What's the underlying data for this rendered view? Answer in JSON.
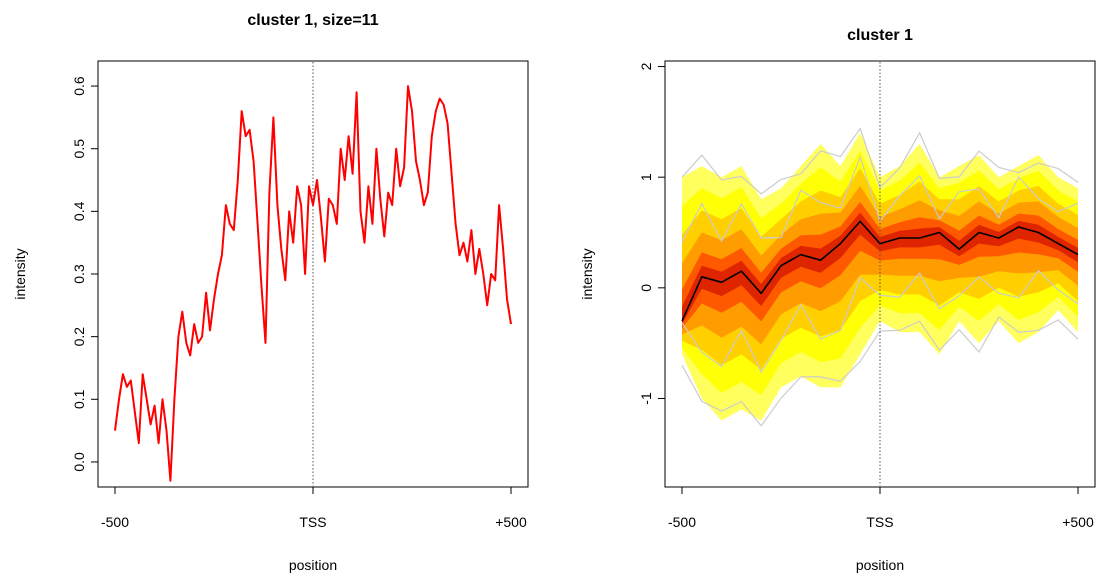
{
  "chart_data": [
    {
      "type": "line",
      "title": "cluster 1, size=11",
      "xlabel": "position",
      "ylabel": "intensity",
      "xlim": [
        -500,
        500
      ],
      "ylim": [
        -0.04,
        0.64
      ],
      "x_ticks": [
        {
          "value": -500,
          "label": "-500"
        },
        {
          "value": 0,
          "label": "TSS"
        },
        {
          "value": 500,
          "label": "+500"
        }
      ],
      "y_ticks": [
        {
          "value": 0.0,
          "label": "0.0"
        },
        {
          "value": 0.1,
          "label": "0.1"
        },
        {
          "value": 0.2,
          "label": "0.2"
        },
        {
          "value": 0.3,
          "label": "0.3"
        },
        {
          "value": 0.4,
          "label": "0.4"
        },
        {
          "value": 0.5,
          "label": "0.5"
        },
        {
          "value": 0.6,
          "label": "0.6"
        }
      ],
      "vline": 0,
      "grid": false,
      "series": [
        {
          "color": "#ff0000",
          "x": [
            -500,
            -490,
            -480,
            -470,
            -460,
            -450,
            -440,
            -430,
            -420,
            -410,
            -400,
            -390,
            -380,
            -370,
            -360,
            -350,
            -340,
            -330,
            -320,
            -310,
            -300,
            -290,
            -280,
            -270,
            -260,
            -250,
            -240,
            -230,
            -220,
            -210,
            -200,
            -190,
            -180,
            -170,
            -160,
            -150,
            -140,
            -130,
            -120,
            -110,
            -100,
            -90,
            -80,
            -70,
            -60,
            -50,
            -40,
            -30,
            -20,
            -10,
            0,
            10,
            20,
            30,
            40,
            50,
            60,
            70,
            80,
            90,
            100,
            110,
            120,
            130,
            140,
            150,
            160,
            170,
            180,
            190,
            200,
            210,
            220,
            230,
            240,
            250,
            260,
            270,
            280,
            290,
            300,
            310,
            320,
            330,
            340,
            350,
            360,
            370,
            380,
            390,
            400,
            410,
            420,
            430,
            440,
            450,
            460,
            470,
            480,
            490,
            500
          ],
          "values": [
            0.05,
            0.1,
            0.14,
            0.12,
            0.13,
            0.08,
            0.03,
            0.14,
            0.1,
            0.06,
            0.09,
            0.03,
            0.1,
            0.05,
            -0.03,
            0.1,
            0.2,
            0.24,
            0.19,
            0.17,
            0.22,
            0.19,
            0.2,
            0.27,
            0.21,
            0.26,
            0.3,
            0.33,
            0.41,
            0.38,
            0.37,
            0.45,
            0.56,
            0.52,
            0.53,
            0.48,
            0.38,
            0.28,
            0.19,
            0.43,
            0.55,
            0.41,
            0.34,
            0.29,
            0.4,
            0.35,
            0.44,
            0.41,
            0.3,
            0.44,
            0.41,
            0.45,
            0.39,
            0.32,
            0.42,
            0.41,
            0.38,
            0.5,
            0.45,
            0.52,
            0.46,
            0.59,
            0.4,
            0.35,
            0.44,
            0.38,
            0.5,
            0.42,
            0.36,
            0.43,
            0.41,
            0.5,
            0.44,
            0.47,
            0.6,
            0.56,
            0.48,
            0.45,
            0.41,
            0.43,
            0.52,
            0.56,
            0.58,
            0.57,
            0.54,
            0.46,
            0.38,
            0.33,
            0.35,
            0.32,
            0.37,
            0.3,
            0.34,
            0.3,
            0.25,
            0.3,
            0.29,
            0.41,
            0.34,
            0.26,
            0.22
          ]
        }
      ]
    },
    {
      "type": "line",
      "title": "cluster 1",
      "xlabel": "position",
      "ylabel": "intensity",
      "xlim": [
        -500,
        500
      ],
      "ylim": [
        -1.8,
        2.05
      ],
      "x_ticks": [
        {
          "value": -500,
          "label": "-500"
        },
        {
          "value": 0,
          "label": "TSS"
        },
        {
          "value": 500,
          "label": "+500"
        }
      ],
      "y_ticks": [
        {
          "value": -1,
          "label": "-1"
        },
        {
          "value": 0,
          "label": "0"
        },
        {
          "value": 1,
          "label": "1"
        },
        {
          "value": 2,
          "label": "2"
        }
      ],
      "vline": 0,
      "grid": false,
      "quantile_bands": [
        {
          "quantile": "0-100%",
          "color": "#ffff55"
        },
        {
          "quantile": "10-90%",
          "color": "#ffff00"
        },
        {
          "quantile": "20-80%",
          "color": "#ffcc00"
        },
        {
          "quantile": "30-70%",
          "color": "#ff9900"
        },
        {
          "quantile": "40-60%",
          "color": "#ff5500"
        },
        {
          "quantile": "45-55%",
          "color": "#dd2200"
        }
      ],
      "x": [
        -500,
        -450,
        -400,
        -350,
        -300,
        -250,
        -200,
        -150,
        -100,
        -50,
        0,
        50,
        100,
        150,
        200,
        250,
        300,
        350,
        400,
        450,
        500
      ],
      "mean_series": {
        "color": "#000000",
        "values": [
          -0.3,
          0.1,
          0.05,
          0.15,
          -0.05,
          0.2,
          0.3,
          0.25,
          0.4,
          0.6,
          0.4,
          0.45,
          0.45,
          0.5,
          0.35,
          0.5,
          0.45,
          0.55,
          0.5,
          0.4,
          0.3
        ]
      },
      "spread_series": {
        "upper": [
          1.0,
          1.1,
          1.0,
          1.1,
          0.8,
          0.9,
          1.1,
          1.3,
          1.1,
          1.4,
          1.0,
          1.1,
          1.3,
          1.0,
          1.1,
          1.2,
          1.0,
          1.1,
          1.2,
          1.0,
          0.9
        ],
        "lower": [
          -0.6,
          -1.0,
          -1.2,
          -1.1,
          -1.2,
          -0.9,
          -0.8,
          -0.9,
          -0.9,
          -0.6,
          -0.3,
          -0.4,
          -0.4,
          -0.6,
          -0.3,
          -0.5,
          -0.3,
          -0.5,
          -0.4,
          -0.2,
          -0.4
        ]
      },
      "individual_profiles_color": "#cccccc"
    }
  ]
}
